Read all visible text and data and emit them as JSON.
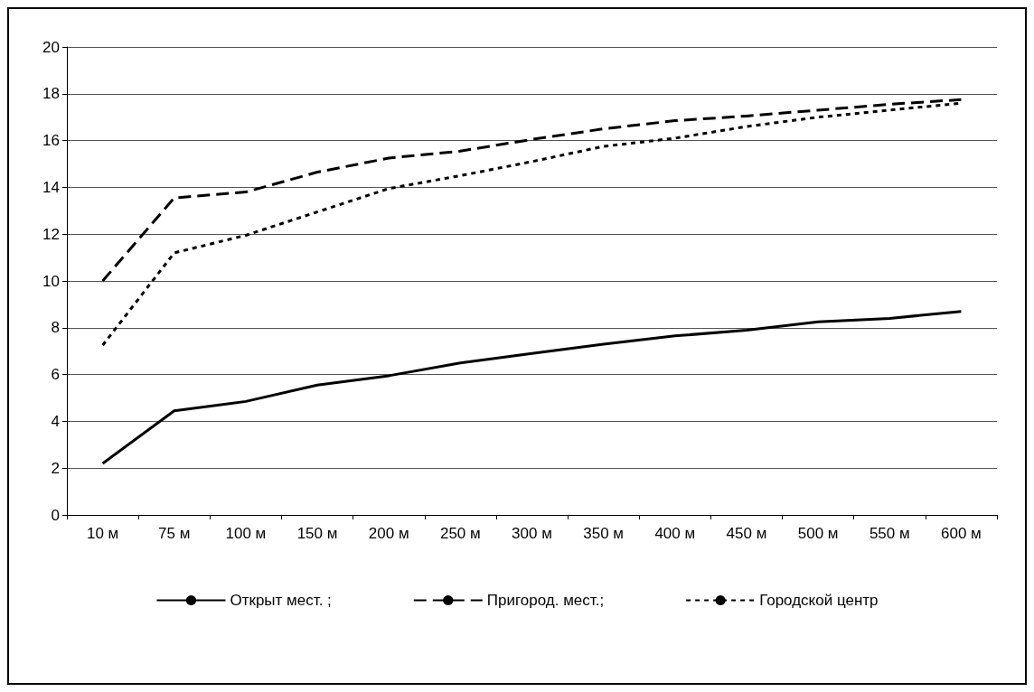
{
  "chart_data": {
    "type": "line",
    "categories": [
      "10 м",
      "75 м",
      "100 м",
      "150 м",
      "200 м",
      "250 м",
      "300 м",
      "350 м",
      "400 м",
      "450 м",
      "500 м",
      "550 м",
      "600 м"
    ],
    "series": [
      {
        "name": "Открыт мест. ;",
        "color": "#000000",
        "line_style": "solid",
        "values": [
          2.2,
          4.45,
          4.85,
          5.55,
          5.95,
          6.5,
          6.9,
          7.3,
          7.65,
          7.9,
          8.25,
          8.4,
          8.7
        ]
      },
      {
        "name": "Пригород. мест.;",
        "color": "#000000",
        "line_style": "dashed",
        "values": [
          10.0,
          13.55,
          13.8,
          14.65,
          15.25,
          15.55,
          16.05,
          16.5,
          16.85,
          17.05,
          17.3,
          17.55,
          17.75
        ]
      },
      {
        "name": "Городской центр",
        "color": "#000000",
        "line_style": "dotted",
        "values": [
          7.25,
          11.2,
          11.95,
          12.95,
          13.95,
          14.5,
          15.1,
          15.75,
          16.1,
          16.6,
          17.0,
          17.3,
          17.6
        ]
      }
    ],
    "ylim": [
      0,
      20
    ],
    "yticks": [
      0,
      2,
      4,
      6,
      8,
      10,
      12,
      14,
      16,
      18,
      20
    ],
    "grid": "y",
    "legend": "bottom",
    "marker": "none"
  }
}
